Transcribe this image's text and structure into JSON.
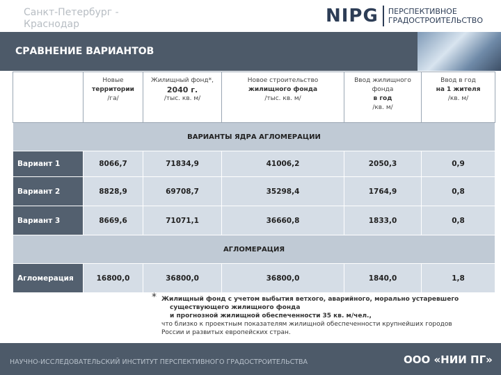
{
  "header": {
    "location": "Санкт-Петербург - Краснодар",
    "logo_mark": "NIPG",
    "logo_text": [
      "ПЕРСПЕКТИВНОЕ",
      "ГРАДОСТРОИТЕЛЬСТВО"
    ],
    "title": "СРАВНЕНИЕ ВАРИАНТОВ"
  },
  "table": {
    "columns": [
      [],
      [
        "Новые",
        "территории",
        "/га/"
      ],
      [
        "Жилищный фонд*,",
        "2040 г.",
        "/тыс. кв. м/"
      ],
      [
        "Новое строительство",
        "жилищного фонда",
        "/тыс. кв. м/"
      ],
      [
        "Ввод жилищного",
        "фонда",
        "в год",
        "/кв. м/"
      ],
      [
        "Ввод в год",
        "на 1 жителя",
        "/кв. м/"
      ]
    ],
    "sections": [
      {
        "title": "ВАРИАНТЫ ЯДРА АГЛОМЕРАЦИИ",
        "rows": [
          [
            "Вариант 1",
            "8066,7",
            "71834,9",
            "41006,2",
            "2050,3",
            "0,9"
          ],
          [
            "Вариант 2",
            "8828,9",
            "69708,7",
            "35298,4",
            "1764,9",
            "0,8"
          ],
          [
            "Вариант 3",
            "8669,6",
            "71071,1",
            "36660,8",
            "1833,0",
            "0,8"
          ]
        ]
      },
      {
        "title": "АГЛОМЕРАЦИЯ",
        "rows": [
          [
            "Агломерация",
            "16800,0",
            "36800,0",
            "36800,0",
            "1840,0",
            "1,8"
          ]
        ]
      }
    ]
  },
  "footnote": {
    "mark": "*",
    "lines": [
      "Жилищный фонд с учетом выбытия ветхого, аварийного, морально устаревшего",
      "существующего жилищного фонда",
      "и прогнозной жилищной обеспеченности 35 кв. м/чел.,",
      "что близко к проектным показателям жилищной обеспеченности крупнейших городов",
      "России и развитых европейских стран."
    ]
  },
  "footer": {
    "institute": "НАУЧНО-ИССЛЕДОВАТЕЛЬСКИЙ ИНСТИТУТ ПЕРСПЕКТИВНОГО ГРАДОСТРОИТЕЛЬСТВА",
    "company": "ООО «НИИ ПГ»"
  }
}
